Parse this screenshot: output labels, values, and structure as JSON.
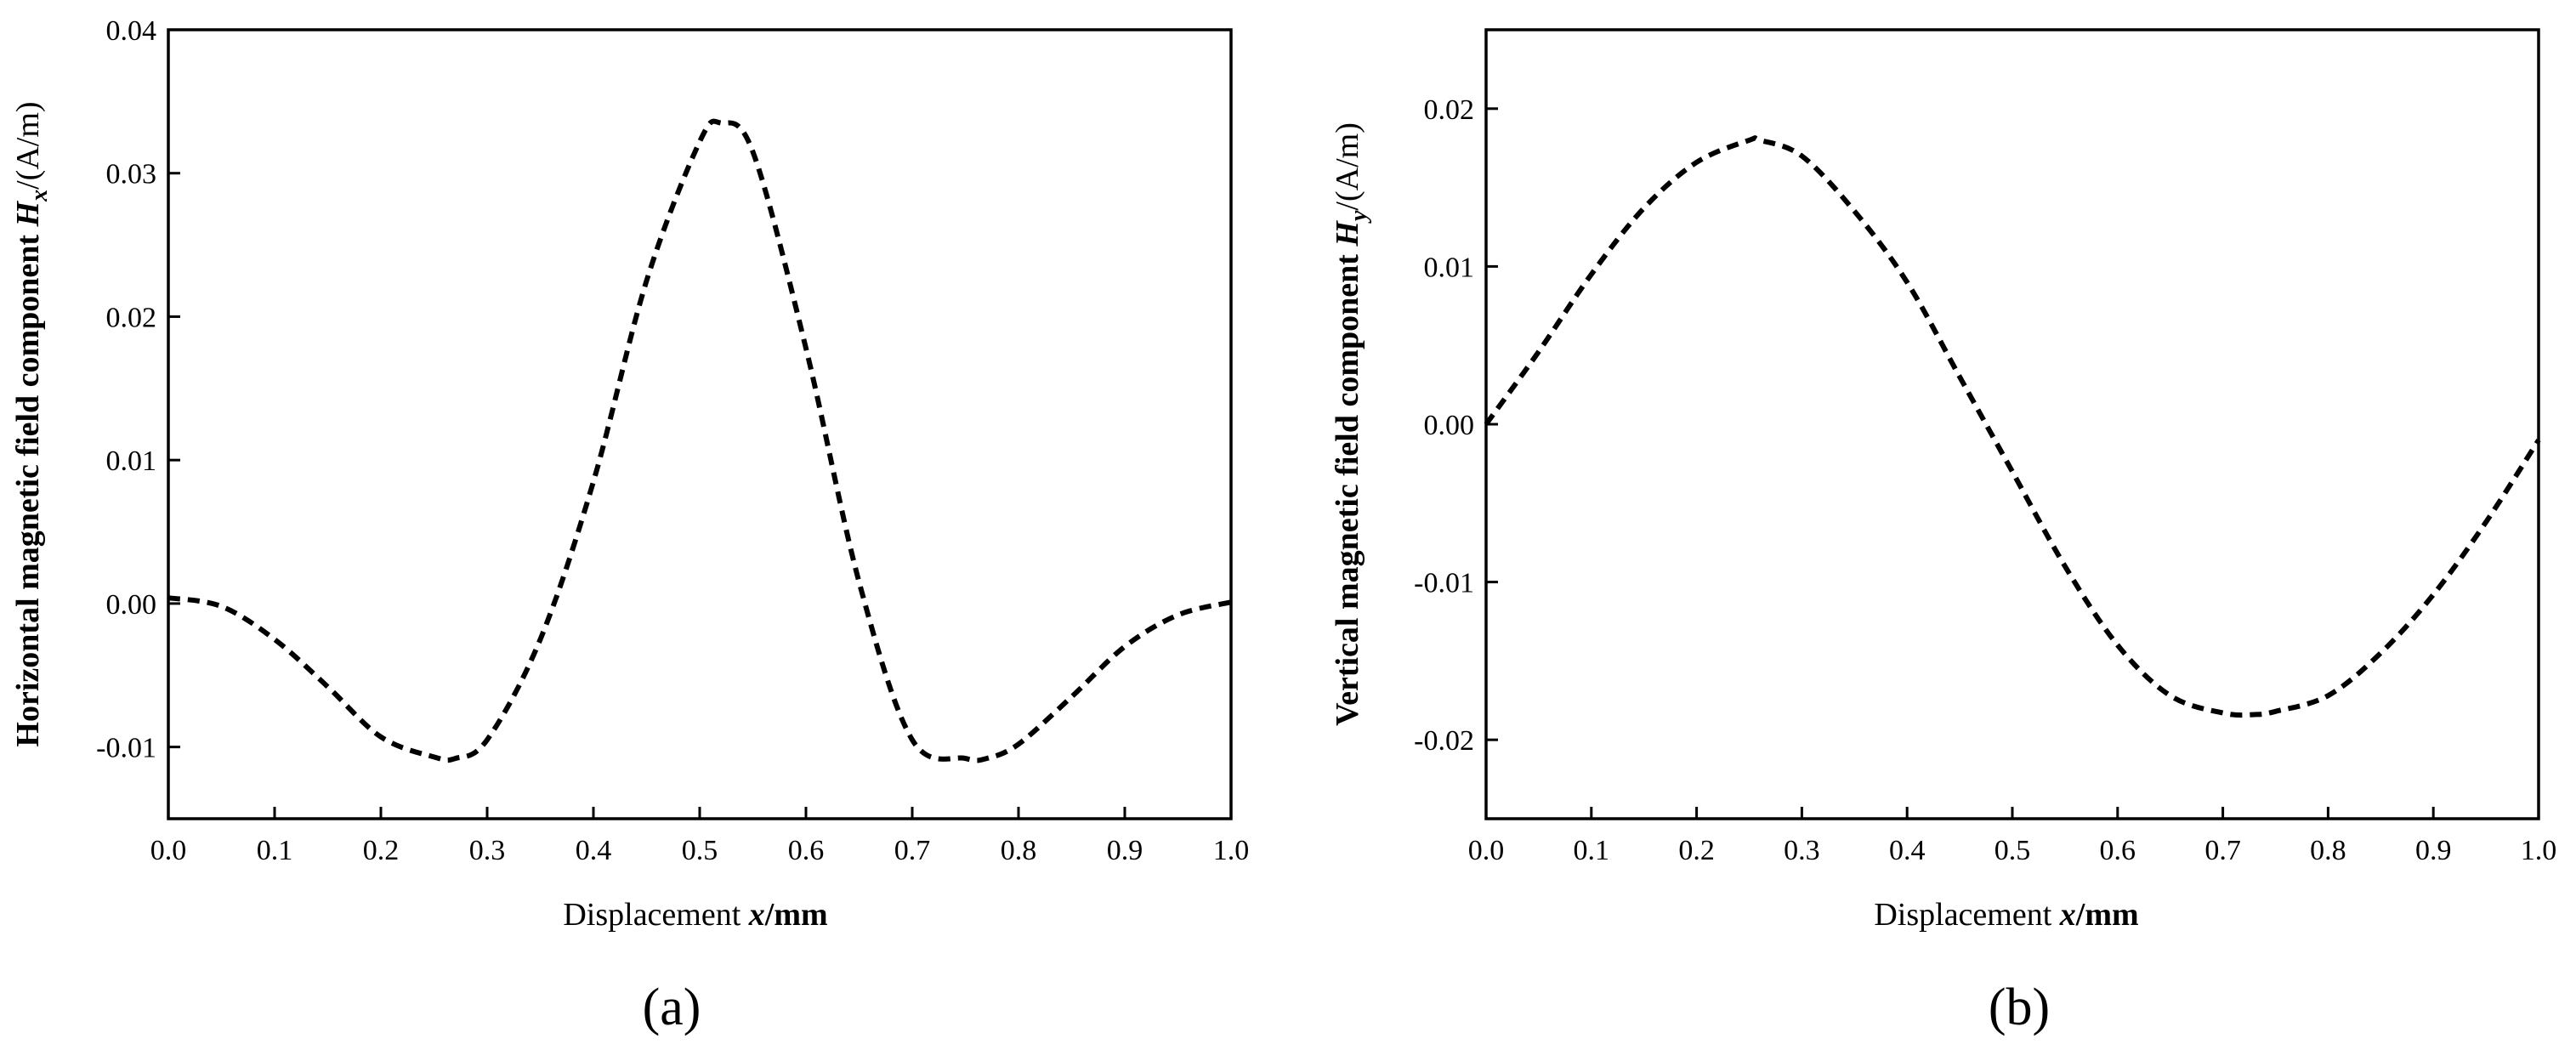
{
  "chart_data": [
    {
      "type": "line",
      "panel_label": "(a)",
      "xlabel": {
        "text": "Displacement ",
        "var": "x",
        "unit": "/mm"
      },
      "ylabel": {
        "text": "Horizontal magnetic field component ",
        "var": "H",
        "sub": "x",
        "unit": "/(A/m)"
      },
      "xlim": [
        0.0,
        1.0
      ],
      "ylim": [
        -0.015,
        0.04
      ],
      "xticks": [
        "0.0",
        "0.1",
        "0.2",
        "0.3",
        "0.4",
        "0.5",
        "0.6",
        "0.7",
        "0.8",
        "0.9",
        "1.0"
      ],
      "yticks": [
        "-0.01",
        "0.00",
        "0.01",
        "0.02",
        "0.03",
        "0.04"
      ],
      "line_style": "dashed",
      "grid": false,
      "series": [
        {
          "x": [
            0.0,
            0.05,
            0.1,
            0.15,
            0.2,
            0.25,
            0.27,
            0.3,
            0.35,
            0.4,
            0.45,
            0.5,
            0.52,
            0.55,
            0.6,
            0.65,
            0.7,
            0.75,
            0.77,
            0.8,
            0.85,
            0.9,
            0.95,
            1.0
          ],
          "y": [
            0.0004,
            -0.0002,
            -0.0025,
            -0.0058,
            -0.0093,
            -0.0107,
            -0.0108,
            -0.0095,
            -0.0025,
            0.0085,
            0.0225,
            0.0322,
            0.0335,
            0.0315,
            0.0178,
            0.0015,
            -0.0095,
            -0.0108,
            -0.0108,
            -0.0098,
            -0.0065,
            -0.003,
            -0.0008,
            0.0001
          ]
        }
      ]
    },
    {
      "type": "line",
      "panel_label": "(b)",
      "xlabel": {
        "text": "Displacement ",
        "var": "x",
        "unit": "/mm"
      },
      "ylabel": {
        "text": "Vertical magnetic field component ",
        "var": "H",
        "sub": "y",
        "unit": "/(A/m)"
      },
      "xlim": [
        0.0,
        1.0
      ],
      "ylim": [
        -0.025,
        0.025
      ],
      "xticks": [
        "0.0",
        "0.1",
        "0.2",
        "0.3",
        "0.4",
        "0.5",
        "0.6",
        "0.7",
        "0.8",
        "0.9",
        "1.0"
      ],
      "yticks": [
        "-0.02",
        "-0.01",
        "0.00",
        "0.01",
        "0.02"
      ],
      "line_style": "dashed",
      "grid": false,
      "series": [
        {
          "x": [
            0.0,
            0.05,
            0.1,
            0.15,
            0.2,
            0.25,
            0.26,
            0.3,
            0.35,
            0.4,
            0.45,
            0.5,
            0.55,
            0.6,
            0.65,
            0.7,
            0.73,
            0.75,
            0.8,
            0.85,
            0.9,
            0.95,
            1.0
          ],
          "y": [
            0.0,
            0.0046,
            0.0095,
            0.0137,
            0.0166,
            0.018,
            0.018,
            0.017,
            0.0135,
            0.009,
            0.003,
            -0.003,
            -0.009,
            -0.014,
            -0.0172,
            -0.0183,
            -0.0184,
            -0.0182,
            -0.0172,
            -0.0145,
            -0.0108,
            -0.0062,
            -0.001
          ]
        }
      ]
    }
  ]
}
